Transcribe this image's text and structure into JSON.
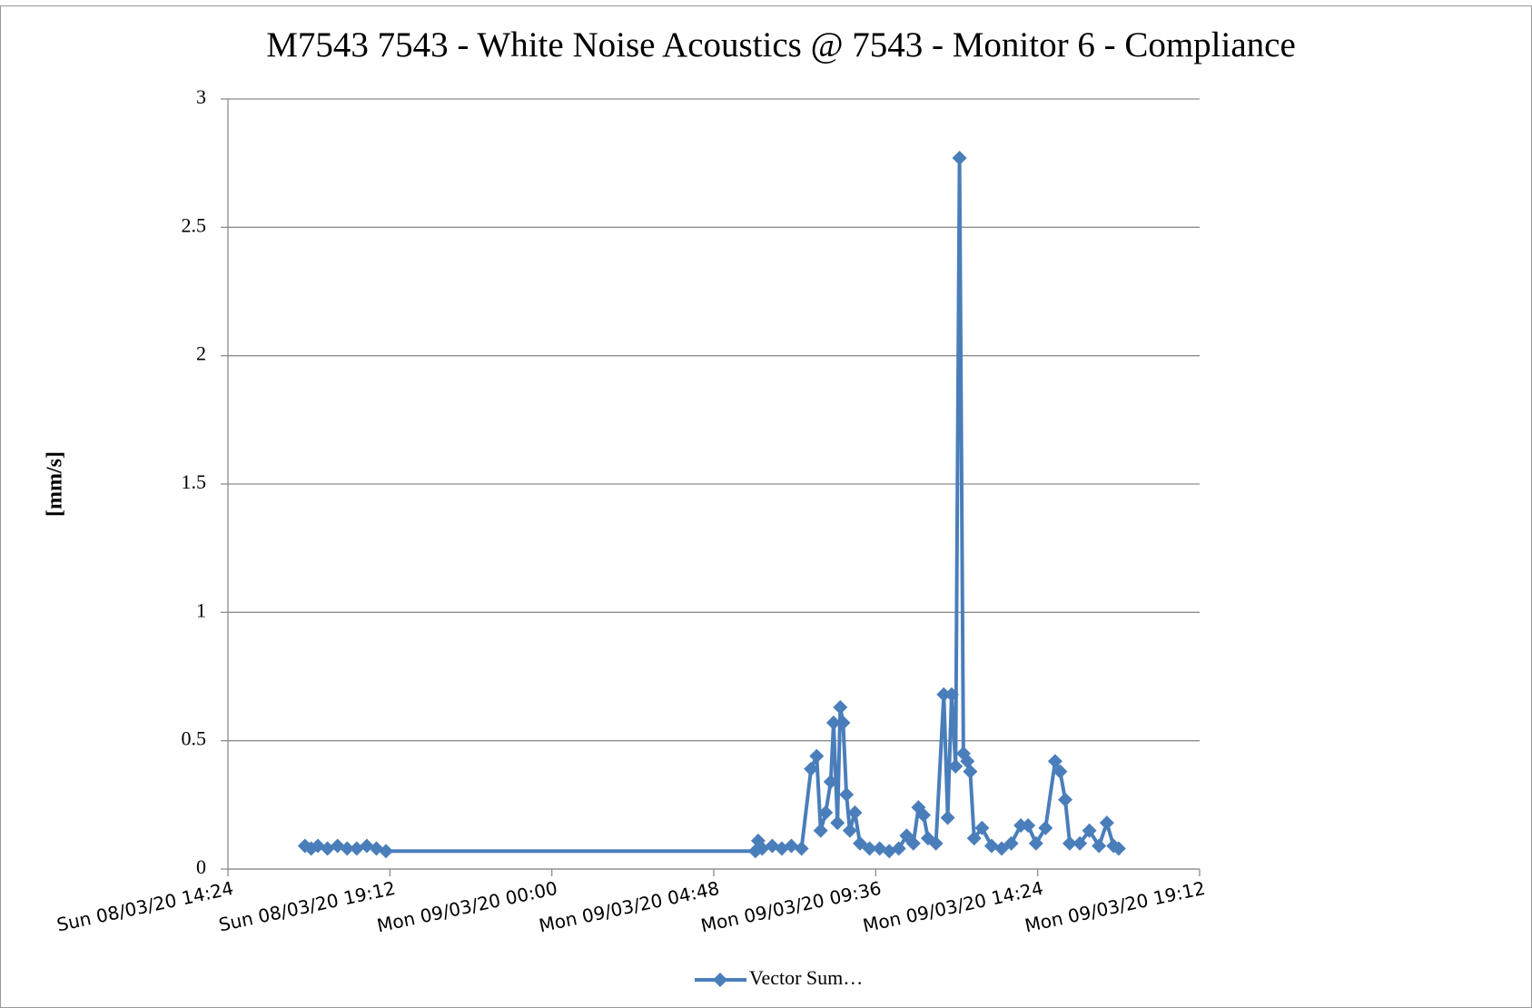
{
  "chart_data": {
    "type": "line",
    "title": "M7543 7543 - White Noise Acoustics @ 7543 - Monitor 6  - Compliance",
    "y_label": "[mm/s]",
    "x": [
      "2020-03-08T16:41",
      "2020-03-08T16:52",
      "2020-03-08T17:04",
      "2020-03-08T17:21",
      "2020-03-08T17:39",
      "2020-03-08T17:56",
      "2020-03-08T18:13",
      "2020-03-08T18:31",
      "2020-03-08T18:48",
      "2020-03-08T19:05",
      "2020-03-09T06:02",
      "2020-03-09T06:07",
      "2020-03-09T06:14",
      "2020-03-09T06:32",
      "2020-03-09T06:49",
      "2020-03-09T07:06",
      "2020-03-09T07:24",
      "2020-03-09T07:41",
      "2020-03-09T07:51",
      "2020-03-09T07:58",
      "2020-03-09T08:07",
      "2020-03-09T08:16",
      "2020-03-09T08:21",
      "2020-03-09T08:28",
      "2020-03-09T08:33",
      "2020-03-09T08:38",
      "2020-03-09T08:44",
      "2020-03-09T08:50",
      "2020-03-09T08:59",
      "2020-03-09T09:08",
      "2020-03-09T09:25",
      "2020-03-09T09:43",
      "2020-03-09T10:00",
      "2020-03-09T10:17",
      "2020-03-09T10:31",
      "2020-03-09T10:43",
      "2020-03-09T10:52",
      "2020-03-09T11:01",
      "2020-03-09T11:09",
      "2020-03-09T11:23",
      "2020-03-09T11:37",
      "2020-03-09T11:44",
      "2020-03-09T11:51",
      "2020-03-09T11:58",
      "2020-03-09T12:05",
      "2020-03-09T12:12",
      "2020-03-09T12:19",
      "2020-03-09T12:24",
      "2020-03-09T12:31",
      "2020-03-09T12:45",
      "2020-03-09T13:02",
      "2020-03-09T13:20",
      "2020-03-09T13:37",
      "2020-03-09T13:54",
      "2020-03-09T14:07",
      "2020-03-09T14:21",
      "2020-03-09T14:38",
      "2020-03-09T14:55",
      "2020-03-09T15:04",
      "2020-03-09T15:13",
      "2020-03-09T15:21",
      "2020-03-09T15:39",
      "2020-03-09T15:56",
      "2020-03-09T16:13",
      "2020-03-09T16:27",
      "2020-03-09T16:39",
      "2020-03-09T16:48"
    ],
    "series": [
      {
        "name": "Vector Sum…",
        "color": "#4a7ebb",
        "values": [
          0.09,
          0.08,
          0.09,
          0.08,
          0.09,
          0.08,
          0.08,
          0.09,
          0.08,
          0.07,
          0.07,
          0.11,
          0.08,
          0.09,
          0.08,
          0.09,
          0.08,
          0.39,
          0.44,
          0.15,
          0.22,
          0.34,
          0.57,
          0.18,
          0.63,
          0.57,
          0.29,
          0.15,
          0.22,
          0.1,
          0.08,
          0.08,
          0.07,
          0.08,
          0.13,
          0.1,
          0.24,
          0.21,
          0.12,
          0.1,
          0.68,
          0.2,
          0.68,
          0.4,
          2.77,
          0.45,
          0.42,
          0.38,
          0.12,
          0.16,
          0.09,
          0.08,
          0.1,
          0.17,
          0.17,
          0.1,
          0.16,
          0.42,
          0.38,
          0.27,
          0.1,
          0.1,
          0.15,
          0.09,
          0.18,
          0.09,
          0.08
        ]
      }
    ],
    "xlim": [
      "2020-03-08T14:24",
      "2020-03-09T19:12"
    ],
    "xticks": [
      {
        "value": "2020-03-08T14:24",
        "label": "Sun 08/03/20 14:24"
      },
      {
        "value": "2020-03-08T19:12",
        "label": "Sun 08/03/20 19:12"
      },
      {
        "value": "2020-03-09T00:00",
        "label": "Mon 09/03/20 00:00"
      },
      {
        "value": "2020-03-09T04:48",
        "label": "Mon 09/03/20 04:48"
      },
      {
        "value": "2020-03-09T09:36",
        "label": "Mon 09/03/20 09:36"
      },
      {
        "value": "2020-03-09T14:24",
        "label": "Mon 09/03/20 14:24"
      },
      {
        "value": "2020-03-09T19:12",
        "label": "Mon 09/03/20 19:12"
      }
    ],
    "ylim": [
      0,
      3
    ],
    "yticks": [
      0,
      0.5,
      1,
      1.5,
      2,
      2.5,
      3
    ],
    "grid": true,
    "legend": "bottom"
  }
}
